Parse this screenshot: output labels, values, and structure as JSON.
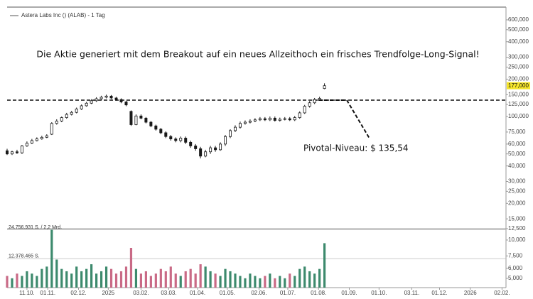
{
  "chart_data": {
    "type": "candlestick",
    "title": "Astera Labs Inc () (ALAB) - 1 Tag",
    "annotation": "Die Aktie generiert mit dem Breakout auf ein neues Allzeithoch ein frisches Trendfolge-Long-Signal!",
    "pivot": {
      "value": 135.54,
      "label": "Pivotal-Niveau: $ 135,54"
    },
    "last_price": {
      "value": 177,
      "label": "177,000"
    },
    "log_scale": true,
    "up_color": "#3d8a6d",
    "down_color": "#c96a86",
    "candle_color": "#1a1a1a",
    "x": [
      -20,
      -15,
      -10,
      -5,
      0,
      5,
      10,
      15,
      20,
      25,
      30,
      35,
      40,
      45,
      50,
      55,
      60,
      65,
      70,
      75,
      80,
      85,
      90,
      95,
      100,
      105,
      110,
      115,
      120,
      125,
      130,
      135,
      140,
      145,
      150,
      155,
      160,
      165,
      170,
      175,
      180,
      185,
      190,
      195,
      200,
      205,
      210,
      215,
      220,
      225,
      230,
      235,
      240,
      245,
      250,
      255,
      260,
      265,
      270,
      275,
      280,
      285,
      290,
      295,
      300
    ],
    "open": [
      53,
      50,
      52,
      51,
      58,
      61,
      64,
      66,
      68,
      72,
      88,
      92,
      98,
      104,
      108,
      115,
      122,
      128,
      134,
      139,
      143,
      146,
      141,
      137,
      131,
      110,
      86,
      101,
      97,
      90,
      84,
      79,
      74,
      69,
      66,
      64,
      67,
      62,
      58,
      55,
      48,
      52,
      56,
      54,
      60,
      69,
      77,
      82,
      88,
      90,
      92,
      94,
      96,
      94,
      97,
      93,
      95,
      96,
      94,
      98,
      107,
      121,
      129,
      137,
      168
    ],
    "high": [
      55,
      53,
      54,
      59,
      63,
      66,
      68,
      70,
      72,
      90,
      95,
      100,
      107,
      111,
      118,
      125,
      131,
      138,
      143,
      147,
      150,
      149,
      144,
      140,
      134,
      112,
      104,
      104,
      99,
      92,
      86,
      81,
      76,
      71,
      68,
      69,
      69,
      64,
      60,
      57,
      54,
      58,
      58,
      62,
      71,
      79,
      85,
      91,
      93,
      95,
      97,
      99,
      99,
      100,
      100,
      98,
      99,
      99,
      101,
      110,
      124,
      133,
      141,
      144,
      185
    ],
    "low": [
      49,
      49,
      50,
      50,
      57,
      60,
      63,
      65,
      67,
      71,
      86,
      90,
      96,
      102,
      106,
      113,
      120,
      126,
      131,
      136,
      140,
      138,
      134,
      128,
      121,
      84,
      85,
      95,
      88,
      82,
      77,
      72,
      67,
      64,
      62,
      62,
      60,
      56,
      53,
      46,
      47,
      50,
      52,
      53,
      58,
      67,
      75,
      80,
      86,
      88,
      90,
      92,
      92,
      92,
      91,
      91,
      93,
      92,
      92,
      96,
      105,
      118,
      126,
      134,
      166
    ],
    "close": [
      50,
      52,
      51,
      58,
      61,
      64,
      66,
      68,
      70,
      88,
      92,
      98,
      104,
      108,
      115,
      122,
      128,
      134,
      139,
      143,
      146,
      141,
      137,
      131,
      124,
      86,
      101,
      97,
      90,
      84,
      79,
      74,
      69,
      66,
      64,
      67,
      62,
      58,
      55,
      48,
      52,
      56,
      54,
      60,
      69,
      77,
      82,
      88,
      90,
      92,
      94,
      96,
      94,
      97,
      93,
      95,
      96,
      94,
      98,
      107,
      121,
      129,
      137,
      140,
      177
    ],
    "volume": [
      5,
      4,
      6,
      5,
      7,
      6,
      5,
      8,
      9,
      24.756931,
      12,
      8,
      7,
      6,
      9,
      7,
      8,
      10,
      6,
      7,
      9,
      8,
      6,
      7,
      9,
      17,
      8,
      6,
      7,
      5,
      6,
      8,
      7,
      9,
      6,
      5,
      7,
      8,
      6,
      10,
      9,
      7,
      6,
      5,
      8,
      7,
      6,
      5,
      4,
      6,
      5,
      4,
      5,
      6,
      4,
      5,
      4,
      6,
      5,
      8,
      9,
      7,
      6,
      8,
      19
    ],
    "xlim": [
      -20,
      483
    ],
    "xticks": [
      {
        "value": 0,
        "label": "11.10."
      },
      {
        "value": 21,
        "label": "01.11."
      },
      {
        "value": 52,
        "label": "02.12."
      },
      {
        "value": 82,
        "label": "2025"
      },
      {
        "value": 115,
        "label": "03.02."
      },
      {
        "value": 143,
        "label": "03.03."
      },
      {
        "value": 172,
        "label": "01.04."
      },
      {
        "value": 202,
        "label": "01.05."
      },
      {
        "value": 234,
        "label": "02.06."
      },
      {
        "value": 263,
        "label": "01.07."
      },
      {
        "value": 294,
        "label": "01.08."
      },
      {
        "value": 325,
        "label": "01.09."
      },
      {
        "value": 355,
        "label": "01.10."
      },
      {
        "value": 388,
        "label": "03.11."
      },
      {
        "value": 416,
        "label": "01.12."
      },
      {
        "value": 447,
        "label": "2026"
      },
      {
        "value": 479,
        "label": "02.02."
      }
    ],
    "ylim": [
      12.5,
      760
    ],
    "yticks": [
      {
        "value": 600,
        "label": "600,000"
      },
      {
        "value": 500,
        "label": "500,000"
      },
      {
        "value": 400,
        "label": "400,000"
      },
      {
        "value": 300,
        "label": "300,000"
      },
      {
        "value": 250,
        "label": "250,000"
      },
      {
        "value": 200,
        "label": "200,000"
      },
      {
        "value": 150,
        "label": "150,000"
      },
      {
        "value": 125,
        "label": "125,000"
      },
      {
        "value": 100,
        "label": "100,000"
      },
      {
        "value": 75,
        "label": "75,000"
      },
      {
        "value": 60,
        "label": "60,000"
      },
      {
        "value": 50,
        "label": "50,000"
      },
      {
        "value": 40,
        "label": "40,000"
      },
      {
        "value": 30,
        "label": "30,000"
      },
      {
        "value": 25,
        "label": "25,000"
      },
      {
        "value": 20,
        "label": "20,000"
      },
      {
        "value": 15,
        "label": "15,000"
      },
      {
        "value": 12.5,
        "label": "12,500"
      }
    ],
    "volume_ylim": [
      0,
      25.2
    ],
    "volume_lines": [
      {
        "value": 24.756931,
        "label": "24.756.931 S. / 2,2 Mrd."
      },
      {
        "value": 12.378465,
        "label": "12.378.465 S."
      }
    ],
    "volume_axis_lim": [
      4.23,
      12.27
    ],
    "volume_ticks": [
      {
        "value": 10,
        "label": "10,000"
      },
      {
        "value": 7.5,
        "label": "7,500"
      },
      {
        "value": 6,
        "label": "6,000"
      },
      {
        "value": 5,
        "label": "5,000"
      }
    ]
  }
}
